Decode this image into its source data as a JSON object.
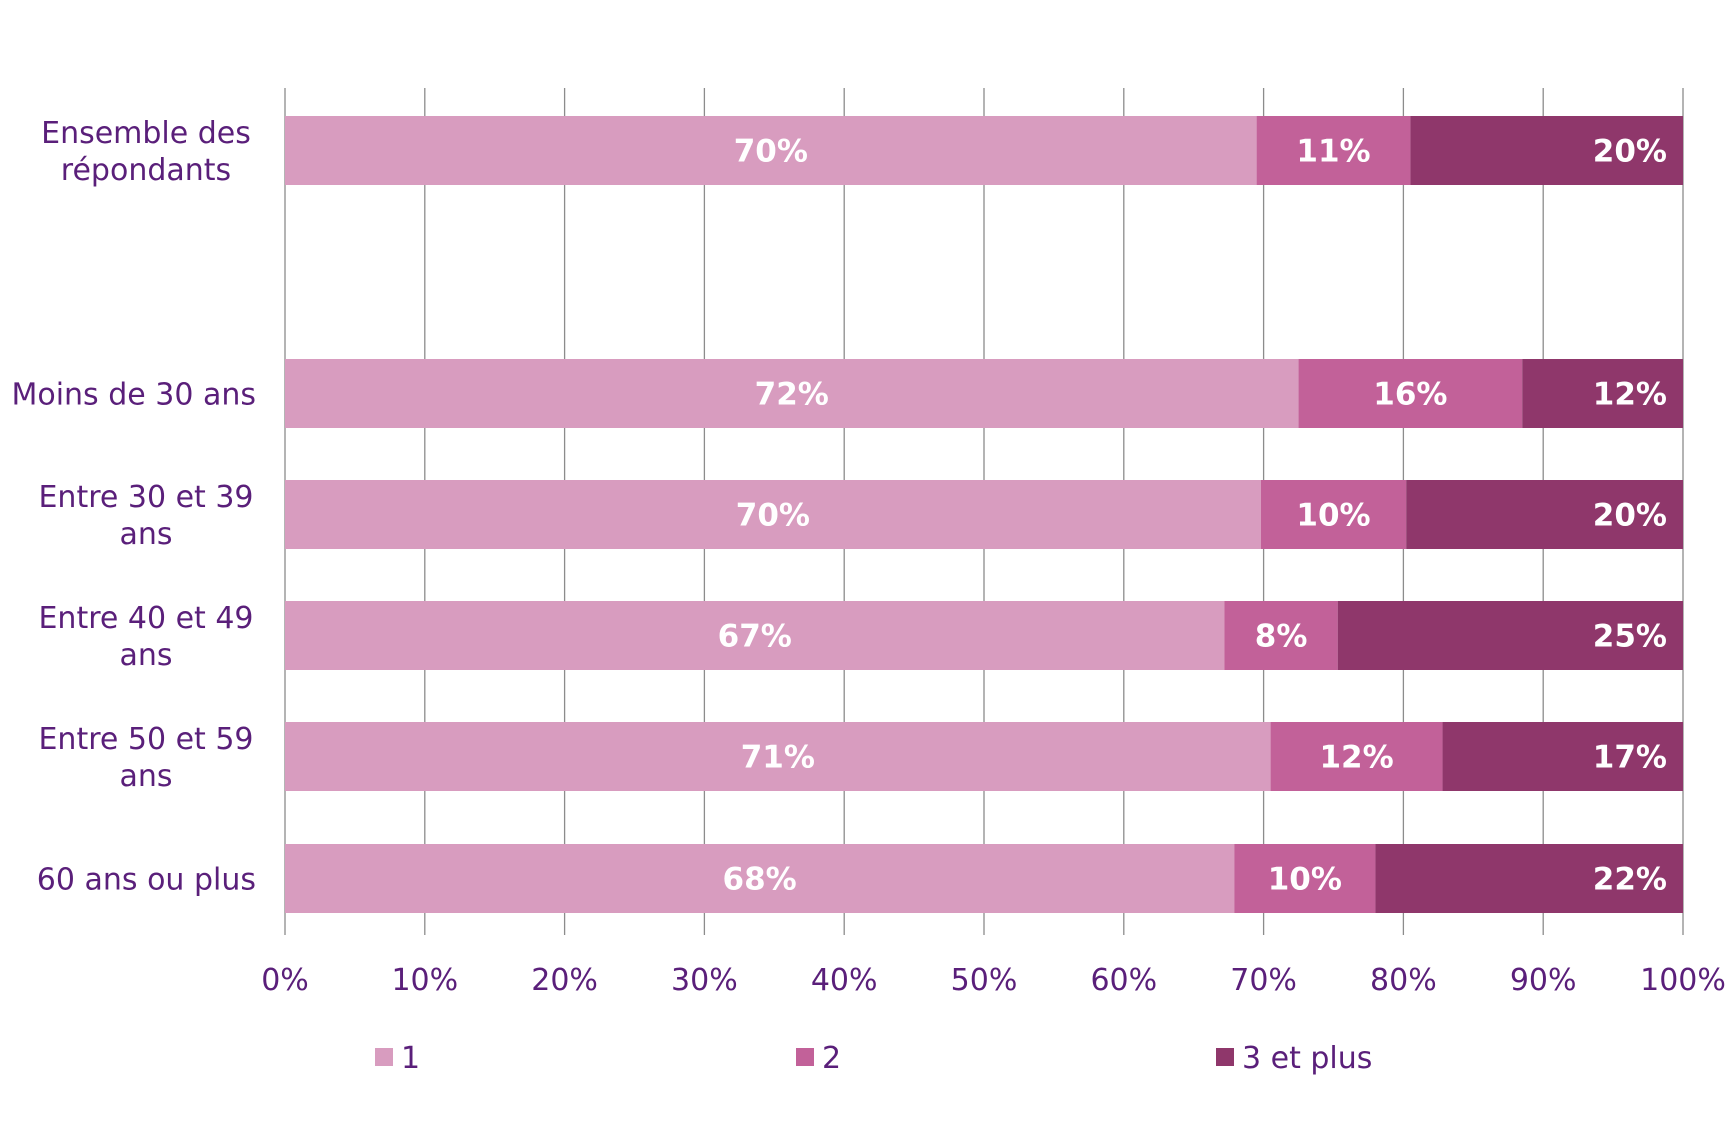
{
  "chart_data": {
    "type": "bar",
    "orientation": "horizontal",
    "stacked": "percent",
    "title": "",
    "xlabel": "",
    "ylabel": "",
    "xlim": [
      0,
      100
    ],
    "grid": true,
    "legend_position": "bottom",
    "categories": [
      {
        "lines": [
          "Ensemble des",
          "répondants"
        ]
      },
      {
        "lines": [
          "Moins de 30 ans"
        ]
      },
      {
        "lines": [
          "Entre 30 et 39",
          "ans"
        ]
      },
      {
        "lines": [
          "Entre 40 et 49",
          "ans"
        ]
      },
      {
        "lines": [
          "Entre 50 et 59",
          "ans"
        ]
      },
      {
        "lines": [
          "60 ans ou plus"
        ]
      }
    ],
    "series": [
      {
        "name": "1",
        "color": "#d89cbf",
        "values": [
          69.5,
          72.5,
          69.8,
          67.2,
          70.5,
          67.9
        ],
        "labels": [
          "70%",
          "72%",
          "70%",
          "67%",
          "71%",
          "68%"
        ]
      },
      {
        "name": "2",
        "color": "#c26199",
        "values": [
          11.0,
          16.0,
          10.4,
          8.1,
          12.3,
          10.1
        ],
        "labels": [
          "11%",
          "16%",
          "10%",
          "8%",
          "12%",
          "10%"
        ]
      },
      {
        "name": "3 et plus",
        "color": "#8f376b",
        "values": [
          19.5,
          11.5,
          19.8,
          24.7,
          17.2,
          22.0
        ],
        "labels": [
          "20%",
          "12%",
          "20%",
          "25%",
          "17%",
          "22%"
        ]
      }
    ],
    "x_ticks": [
      "0%",
      "10%",
      "20%",
      "30%",
      "40%",
      "50%",
      "60%",
      "70%",
      "80%",
      "90%",
      "100%"
    ]
  }
}
